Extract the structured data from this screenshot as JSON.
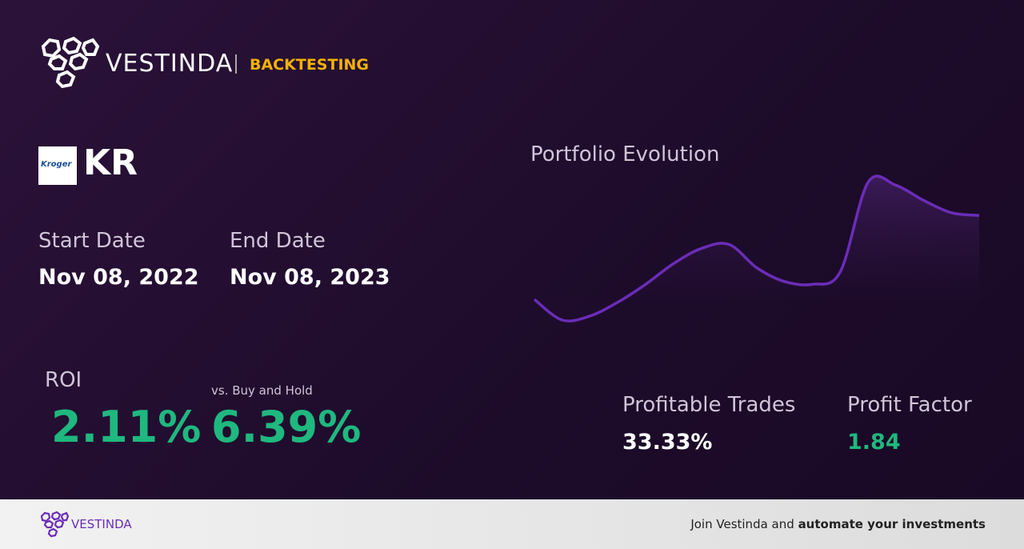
{
  "header": {
    "brand": "VESTINDA",
    "section": "BACKTESTING"
  },
  "ticker": {
    "logo_text": "Kroger",
    "symbol": "KR"
  },
  "dates": {
    "start_label": "Start Date",
    "start_value": "Nov 08, 2022",
    "end_label": "End Date",
    "end_value": "Nov 08, 2023"
  },
  "chart_data": {
    "type": "line",
    "title": "Portfolio Evolution",
    "color": "#6a2db8",
    "values": [
      15,
      0,
      3,
      13,
      26,
      41,
      52,
      55,
      38,
      28,
      26,
      35,
      100,
      98,
      87,
      78,
      76
    ],
    "ylim": [
      0,
      100
    ]
  },
  "metrics": {
    "roi_label": "ROI",
    "roi_value": "2.11%",
    "bh_label": "vs. Buy and Hold",
    "bh_value": "6.39%",
    "trades_label": "Profitable Trades",
    "trades_value": "33.33%",
    "pf_label": "Profit Factor",
    "pf_value": "1.84"
  },
  "footer": {
    "brand": "VESTINDA",
    "cta_plain": "Join Vestinda and",
    "cta_bold": "automate your investments"
  }
}
